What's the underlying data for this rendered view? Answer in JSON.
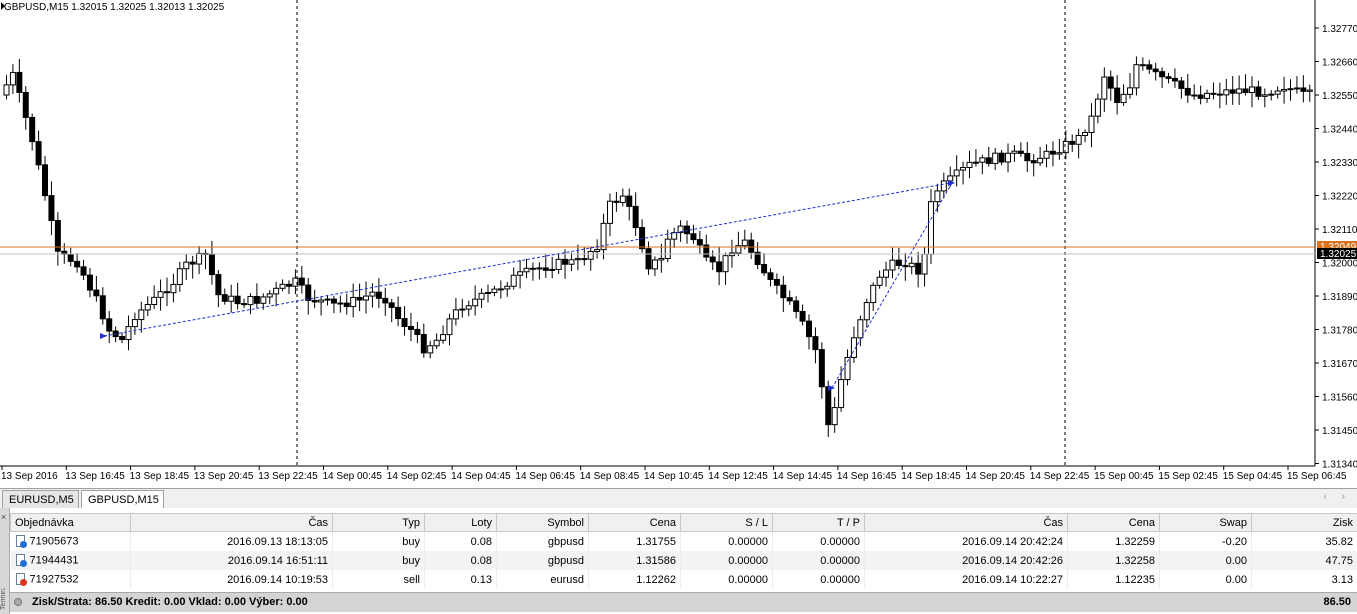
{
  "chart": {
    "symbol_info": "GBPUSD,M15  1.32015 1.32025 1.32013 1.32025",
    "price_axis": [
      "1.32770",
      "1.32660",
      "1.32550",
      "1.32440",
      "1.32330",
      "1.32220",
      "1.32110",
      "1.32000",
      "1.31890",
      "1.31780",
      "1.31670",
      "1.31560",
      "1.31450",
      "1.31340"
    ],
    "time_axis": [
      "13 Sep 2016",
      "13 Sep 16:45",
      "13 Sep 18:45",
      "13 Sep 20:45",
      "13 Sep 22:45",
      "14 Sep 00:45",
      "14 Sep 02:45",
      "14 Sep 04:45",
      "14 Sep 06:45",
      "14 Sep 08:45",
      "14 Sep 10:45",
      "14 Sep 12:45",
      "14 Sep 14:45",
      "14 Sep 16:45",
      "14 Sep 18:45",
      "14 Sep 20:45",
      "14 Sep 22:45",
      "15 Sep 00:45",
      "15 Sep 02:45",
      "15 Sep 04:45",
      "15 Sep 06:45"
    ],
    "line_labels": {
      "bid": "1.32025",
      "level": "1.32049"
    },
    "colors": {
      "bull_body": "#ffffff",
      "bear_body": "#000000",
      "wick": "#000000",
      "level_line": "#d9731f",
      "bid_line": "#c0c0c0",
      "trade_line": "#1f2fd0",
      "separator": "#000000"
    }
  },
  "tabs": [
    {
      "label": "EURUSD,M5",
      "active": false
    },
    {
      "label": "GBPUSD,M15",
      "active": true
    }
  ],
  "terminal": {
    "side_label": "Termin.",
    "columns": [
      "Objednávka",
      "Čas",
      "Typ",
      "Loty",
      "Symbol",
      "Cena",
      "S / L",
      "T / P",
      "Čas",
      "Cena",
      "Swap",
      "Zisk"
    ],
    "rows": [
      {
        "order": "71905673",
        "open_time": "2016.09.13 18:13:05",
        "type": "buy",
        "lots": "0.08",
        "symbol": "gbpusd",
        "open_price": "1.31755",
        "sl": "0.00000",
        "tp": "0.00000",
        "close_time": "2016.09.14 20:42:24",
        "close_price": "1.32259",
        "swap": "-0.20",
        "profit": "35.82",
        "icon": "buy"
      },
      {
        "order": "71944431",
        "open_time": "2016.09.14 16:51:11",
        "type": "buy",
        "lots": "0.08",
        "symbol": "gbpusd",
        "open_price": "1.31586",
        "sl": "0.00000",
        "tp": "0.00000",
        "close_time": "2016.09.14 20:42:26",
        "close_price": "1.32258",
        "swap": "0.00",
        "profit": "47.75",
        "icon": "buy"
      },
      {
        "order": "71927532",
        "open_time": "2016.09.14 10:19:53",
        "type": "sell",
        "lots": "0.13",
        "symbol": "eurusd",
        "open_price": "1.12262",
        "sl": "0.00000",
        "tp": "0.00000",
        "close_time": "2016.09.14 10:22:27",
        "close_price": "1.12235",
        "swap": "0.00",
        "profit": "3.13",
        "icon": "sell"
      }
    ],
    "summary": {
      "text": "Zisk/Strata: 86.50  Kredit: 0.00  Vklad: 0.00  Výber: 0.00",
      "total": "86.50"
    }
  }
}
